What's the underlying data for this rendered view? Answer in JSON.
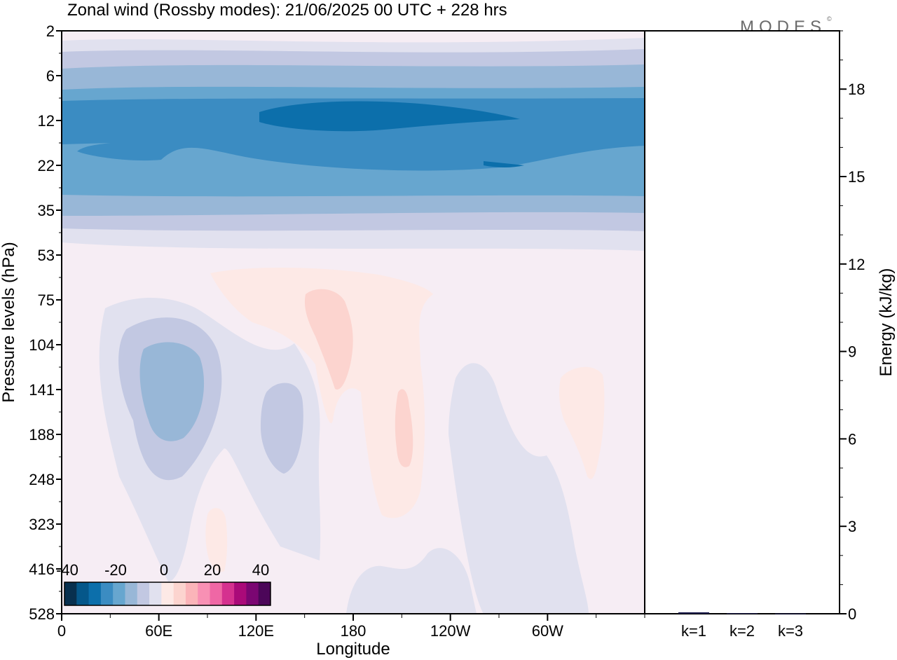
{
  "title": "Zonal wind (Rossby modes):  21/06/2025  00 UTC  + 228 hrs",
  "logo": "MODES",
  "colors": {
    "negative": [
      "#08304f",
      "#05578a",
      "#0c6fab",
      "#3b8cc2",
      "#67a6cf",
      "#98b7d7",
      "#c2c8e2",
      "#e1e1ef"
    ],
    "neutral": "#f6edf4",
    "positive": [
      "#fde9e6",
      "#fcd4cf",
      "#fbb4b9",
      "#f890b4",
      "#ef67a5",
      "#d5318f",
      "#aa0a79",
      "#7b0672",
      "#4c0659"
    ],
    "frame": "#000000",
    "bar": "#1a1a4a"
  },
  "chart_data": [
    {
      "type": "heatmap",
      "title": "Zonal wind (Rossby modes):  21/06/2025  00 UTC  + 228 hrs",
      "xlabel": "Longitude",
      "ylabel": "Pressure levels (hPa)",
      "x_ticks": [
        "0",
        "60E",
        "120E",
        "180",
        "120W",
        "60W"
      ],
      "x_tick_degrees": [
        0,
        60,
        120,
        180,
        240,
        300
      ],
      "xlim": [
        0,
        360
      ],
      "y_ticks": [
        "2",
        "6",
        "12",
        "22",
        "35",
        "53",
        "75",
        "104",
        "141",
        "188",
        "248",
        "323",
        "416",
        "528"
      ],
      "colorbar": {
        "tick_labels": [
          "-40",
          "-20",
          "0",
          "20",
          "40"
        ],
        "range": [
          -40,
          40
        ],
        "step": 5
      },
      "features": [
        {
          "kind": "easterly jet core",
          "levels_hPa": "10-15",
          "longitude": "120E-60W",
          "value": -35
        },
        {
          "kind": "easterly band",
          "levels_hPa": "8-40",
          "longitude": "all",
          "value": -25
        },
        {
          "kind": "minimum",
          "levels_hPa": "104-188",
          "longitude": "70E",
          "value": -15
        },
        {
          "kind": "minimum",
          "levels_hPa": "141-230",
          "longitude": "130E",
          "value": -10
        },
        {
          "kind": "maximum",
          "levels_hPa": "75-141",
          "longitude": "165E",
          "value": 5
        },
        {
          "kind": "maximum",
          "levels_hPa": "141-220",
          "longitude": "160W",
          "value": 5
        }
      ]
    },
    {
      "type": "bar",
      "ylabel": "Energy (kJ/kg)",
      "categories": [
        "k=1",
        "k=2",
        "k=3"
      ],
      "values": [
        0.05,
        0.02,
        0.01
      ],
      "ylim": [
        0,
        20
      ],
      "y_ticks": [
        "0",
        "3",
        "6",
        "9",
        "12",
        "15",
        "18"
      ]
    }
  ]
}
